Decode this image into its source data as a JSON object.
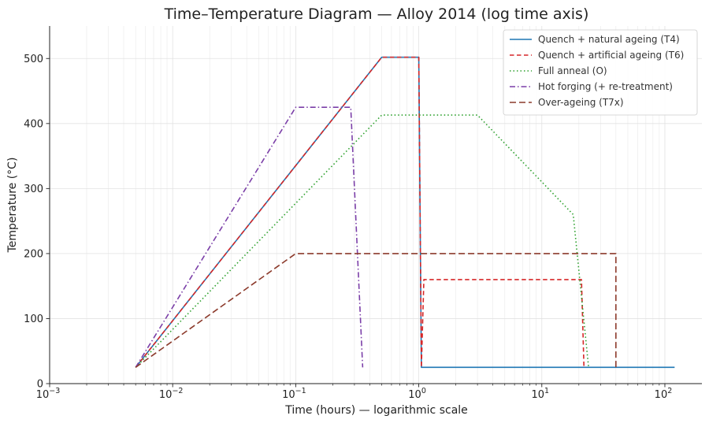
{
  "chart_data": {
    "type": "line",
    "title": "Time–Temperature Diagram — Alloy 2014 (log time axis)",
    "xlabel": "Time (hours) — logarithmic scale",
    "ylabel": "Temperature (°C)",
    "x_scale": "log",
    "xlim": [
      0.001,
      200
    ],
    "ylim": [
      0,
      550
    ],
    "x_ticks": [
      {
        "value": 0.001,
        "base": "10",
        "exp": "−3"
      },
      {
        "value": 0.01,
        "base": "10",
        "exp": "−2"
      },
      {
        "value": 0.1,
        "base": "10",
        "exp": "−1"
      },
      {
        "value": 1,
        "base": "10",
        "exp": "0"
      },
      {
        "value": 10,
        "base": "10",
        "exp": "1"
      },
      {
        "value": 100,
        "base": "10",
        "exp": "2"
      }
    ],
    "y_ticks": [
      0,
      100,
      200,
      300,
      400,
      500
    ],
    "grid": true,
    "legend_position": "top-right",
    "series": [
      {
        "name": "Quench + natural ageing (T4)",
        "color": "#1f77b4",
        "dash": "solid",
        "points": [
          [
            0.005,
            25
          ],
          [
            0.5,
            502
          ],
          [
            1.0,
            502
          ],
          [
            1.05,
            25
          ],
          [
            120,
            25
          ]
        ]
      },
      {
        "name": "Quench + artificial ageing (T6)",
        "color": "#d62728",
        "dash": "dashed",
        "points": [
          [
            0.005,
            25
          ],
          [
            0.5,
            502
          ],
          [
            1.0,
            502
          ],
          [
            1.05,
            25
          ],
          [
            1.1,
            160
          ],
          [
            21,
            160
          ],
          [
            22,
            25
          ]
        ]
      },
      {
        "name": "Full anneal (O)",
        "color": "#2ca02c",
        "dash": "dotted",
        "points": [
          [
            0.005,
            25
          ],
          [
            0.5,
            413
          ],
          [
            3.0,
            413
          ],
          [
            18,
            260
          ],
          [
            24,
            25
          ]
        ]
      },
      {
        "name": "Hot forging (+ re-treatment)",
        "color": "#7b3fa8",
        "dash": "dashdot",
        "points": [
          [
            0.005,
            25
          ],
          [
            0.1,
            425
          ],
          [
            0.28,
            425
          ],
          [
            0.35,
            25
          ]
        ]
      },
      {
        "name": "Over-ageing (T7x)",
        "color": "#8c3a2b",
        "dash": "longdash",
        "points": [
          [
            0.005,
            25
          ],
          [
            0.1,
            200
          ],
          [
            40,
            200
          ],
          [
            40,
            25
          ]
        ]
      }
    ]
  }
}
